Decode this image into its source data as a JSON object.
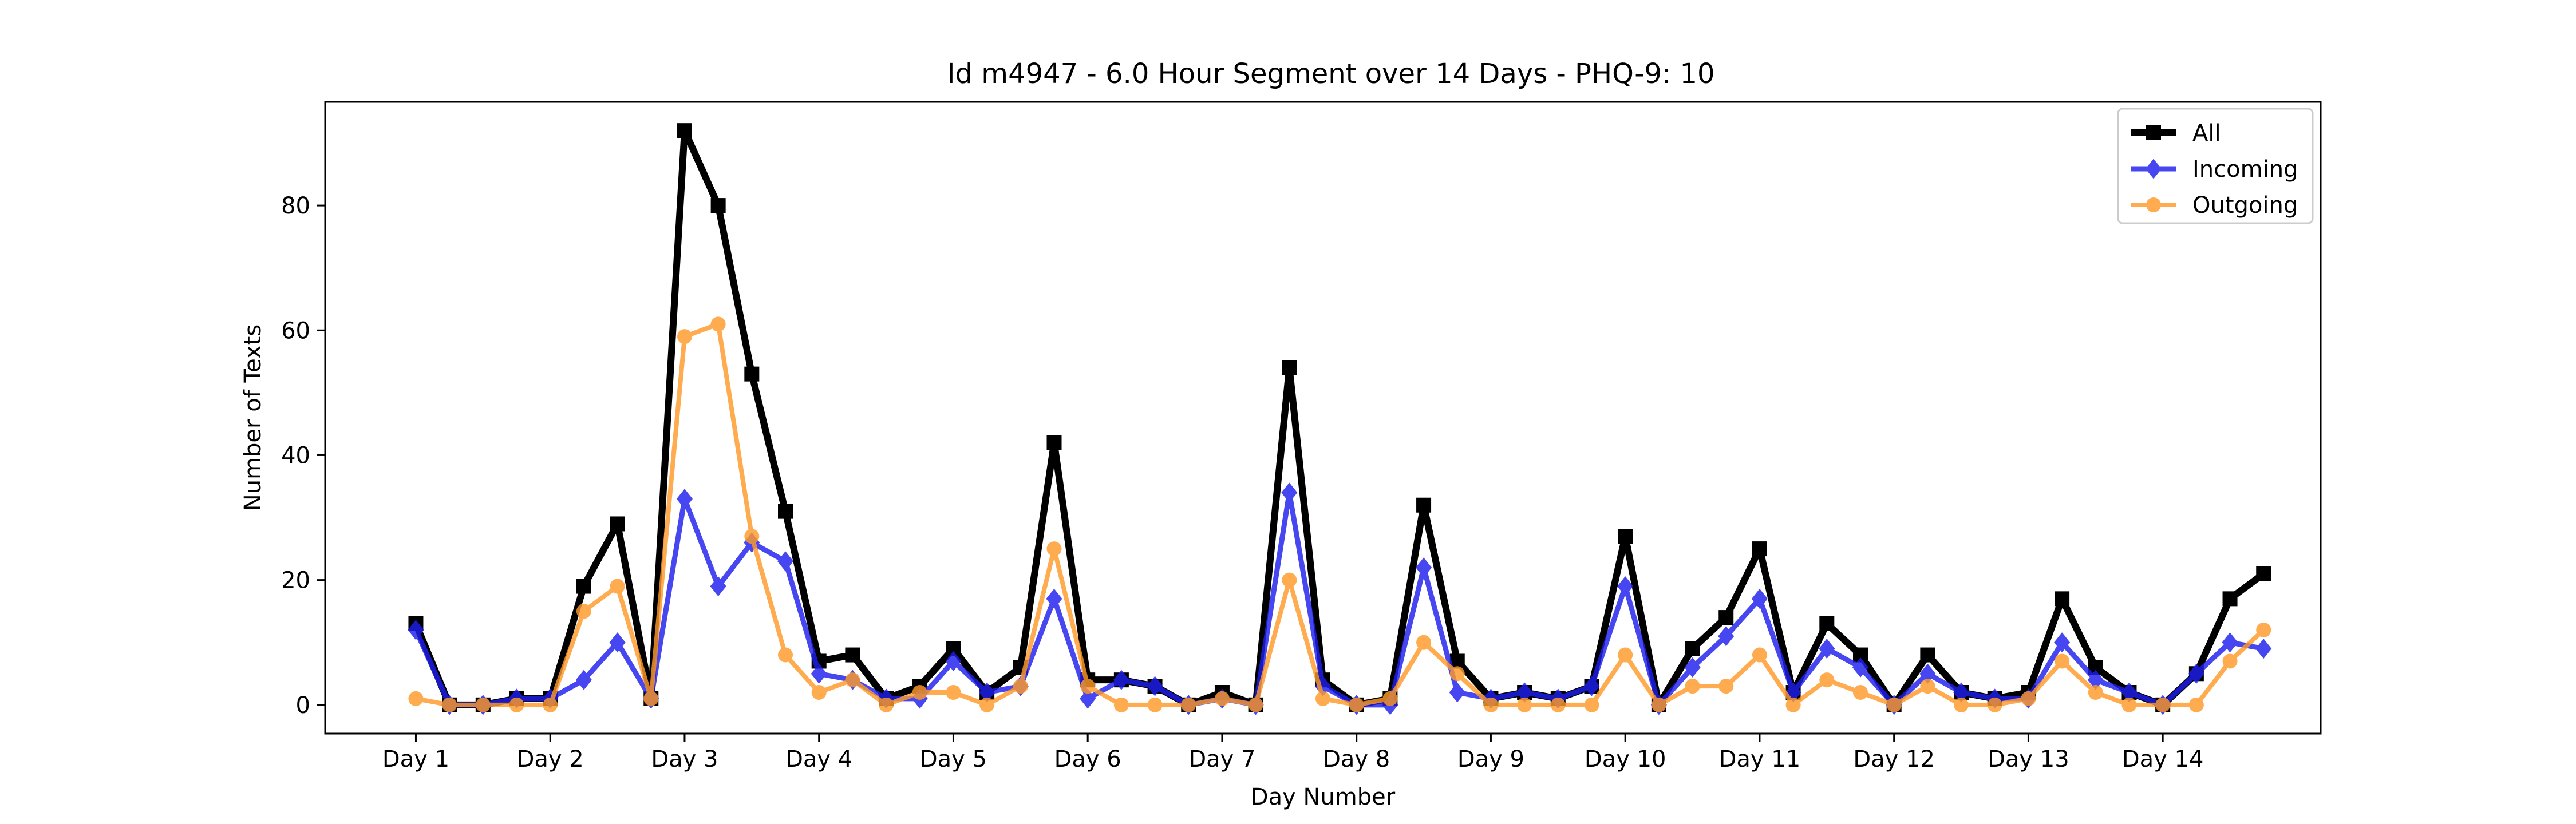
{
  "chart_data": {
    "type": "line",
    "title": "Id m4947 - 6.0 Hour Segment over 14 Days - PHQ-9: 10",
    "xlabel": "Day Number",
    "ylabel": "Number of Texts",
    "ylim": [
      -4.6,
      96.6
    ],
    "xlim": [
      -0.675,
      14.175
    ],
    "yticks": [
      0,
      20,
      40,
      60,
      80
    ],
    "xticks": [
      {
        "value": 0,
        "label": "Day 1"
      },
      {
        "value": 1,
        "label": "Day 2"
      },
      {
        "value": 2,
        "label": "Day 3"
      },
      {
        "value": 3,
        "label": "Day 4"
      },
      {
        "value": 4,
        "label": "Day 5"
      },
      {
        "value": 5,
        "label": "Day 6"
      },
      {
        "value": 6,
        "label": "Day 7"
      },
      {
        "value": 7,
        "label": "Day 8"
      },
      {
        "value": 8,
        "label": "Day 9"
      },
      {
        "value": 9,
        "label": "Day 10"
      },
      {
        "value": 10,
        "label": "Day 11"
      },
      {
        "value": 11,
        "label": "Day 12"
      },
      {
        "value": 12,
        "label": "Day 13"
      },
      {
        "value": 13,
        "label": "Day 14"
      }
    ],
    "x": [
      0,
      0.25,
      0.5,
      0.75,
      1,
      1.25,
      1.5,
      1.75,
      2,
      2.25,
      2.5,
      2.75,
      3,
      3.25,
      3.5,
      3.75,
      4,
      4.25,
      4.5,
      4.75,
      5,
      5.25,
      5.5,
      5.75,
      6,
      6.25,
      6.5,
      6.75,
      7,
      7.25,
      7.5,
      7.75,
      8,
      8.25,
      8.5,
      8.75,
      9,
      9.25,
      9.5,
      9.75,
      10,
      10.25,
      10.5,
      10.75,
      11,
      11.25,
      11.5,
      11.75,
      12,
      12.25,
      12.5,
      12.75,
      13,
      13.25,
      13.5,
      13.75
    ],
    "grid": false,
    "legend_position": "top-right",
    "series": [
      {
        "name": "All",
        "color": "#000000",
        "marker": "square",
        "values": [
          13,
          0,
          0,
          1,
          1,
          19,
          29,
          1,
          92,
          80,
          53,
          31,
          7,
          8,
          1,
          3,
          9,
          2,
          6,
          42,
          4,
          4,
          3,
          0,
          2,
          0,
          54,
          4,
          0,
          1,
          32,
          7,
          1,
          2,
          1,
          3,
          27,
          0,
          9,
          14,
          25,
          2,
          13,
          8,
          0,
          8,
          2,
          1,
          2,
          17,
          6,
          2,
          0,
          5,
          17,
          21
        ]
      },
      {
        "name": "Incoming",
        "color": "#1f1fee",
        "marker": "diamond",
        "values": [
          12,
          0,
          0,
          1,
          1,
          4,
          10,
          1,
          33,
          19,
          26,
          23,
          5,
          4,
          1,
          1,
          7,
          2,
          3,
          17,
          1,
          4,
          3,
          0,
          1,
          0,
          34,
          3,
          0,
          0,
          22,
          2,
          1,
          2,
          1,
          3,
          19,
          0,
          6,
          11,
          17,
          2,
          9,
          6,
          0,
          5,
          2,
          1,
          1,
          10,
          4,
          2,
          0,
          5,
          10,
          9
        ]
      },
      {
        "name": "Outgoing",
        "color": "#ff9a2a",
        "marker": "circle",
        "values": [
          1,
          0,
          0,
          0,
          0,
          15,
          19,
          1,
          59,
          61,
          27,
          8,
          2,
          4,
          0,
          2,
          2,
          0,
          3,
          25,
          3,
          0,
          0,
          0,
          1,
          0,
          20,
          1,
          0,
          1,
          10,
          5,
          0,
          0,
          0,
          0,
          8,
          0,
          3,
          3,
          8,
          0,
          4,
          2,
          0,
          3,
          0,
          0,
          1,
          7,
          2,
          0,
          0,
          0,
          7,
          12
        ]
      }
    ]
  }
}
